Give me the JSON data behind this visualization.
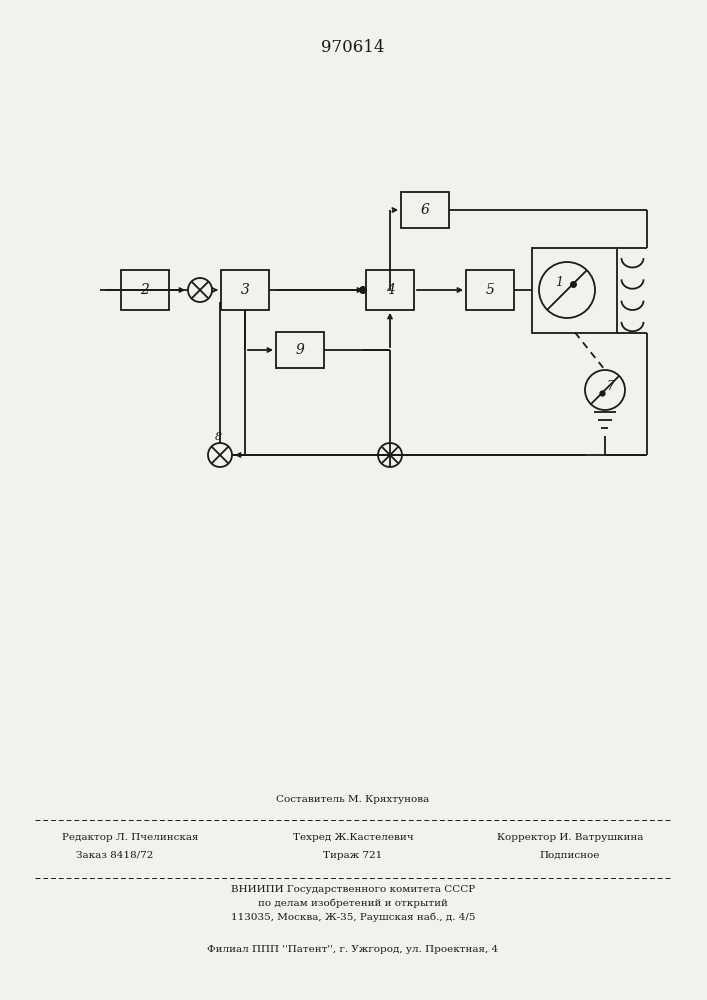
{
  "title": "970614",
  "bg_color": "#f2f1ec",
  "line_color": "#1a1a1a",
  "footer": {
    "sestavitel": "Составитель М. Кряхтунова",
    "redaktor": "Редактор Л. Пчелинская",
    "tekhred": "Техред Ж.Кастелевич",
    "korrektor": "Корректор И. Ватрушкина",
    "zakaz": "Заказ 8418/72",
    "tirazh": "Тираж 721",
    "podpisnoe": "Подписное",
    "vniip1": "ВНИИПИ Государственного комитета СССР",
    "vniip2": "по делам изобретений и открытий",
    "addr": "113035, Москва, Ж-35, Раушская наб., д. 4/5",
    "filial": "Филиал ППП ''Патент'', г. Ужгород, ул. Проектная, 4"
  }
}
